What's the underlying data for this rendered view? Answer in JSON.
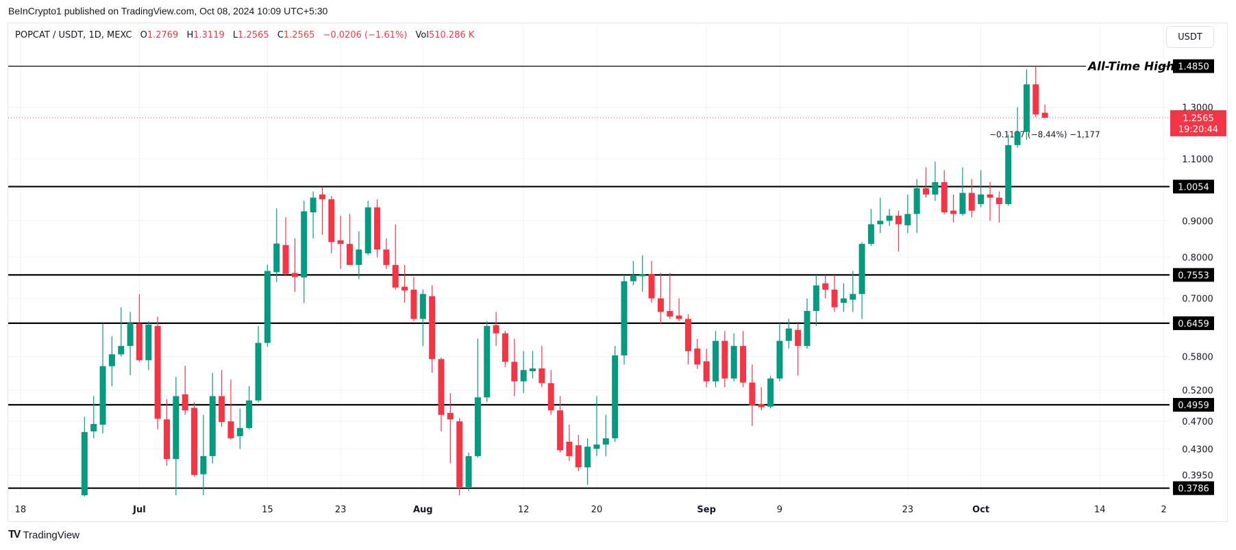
{
  "header": {
    "publisher_text": "BeInCrypto1 published on TradingView.com, Oct 08, 2024 10:09 UTC+5:30"
  },
  "legend": {
    "symbol": "POPCAT / USDT, 1D, MEXC",
    "o_label": "O",
    "o": "1.2769",
    "h_label": "H",
    "h": "1.3119",
    "l_label": "L",
    "l": "1.2565",
    "c_label": "C",
    "c": "1.2565",
    "change": "−0.0206 (−1.61%)",
    "vol_label": "Vol",
    "vol": "510.286 K"
  },
  "currency_button": "USDT",
  "footer": {
    "logo_text": "TradingView"
  },
  "colors": {
    "up": "#089981",
    "down": "#f23645",
    "level_line": "#000000",
    "grid": "#f0f3fa",
    "axis_text": "#131722"
  },
  "chart_data": {
    "type": "candlestick",
    "scale": "log",
    "ylim": [
      0.37,
      1.56
    ],
    "grid": true,
    "y_ticks": [
      "1.3000",
      "1.1000",
      "0.9000",
      "0.8000",
      "0.7000",
      "0.5800",
      "0.5200",
      "0.4700",
      "0.4300",
      "0.3950"
    ],
    "x_ticks": [
      {
        "label": "18",
        "date": "2024-06-18"
      },
      {
        "label": "Jul",
        "date": "2024-07-01",
        "bold": true
      },
      {
        "label": "15",
        "date": "2024-07-15"
      },
      {
        "label": "23",
        "date": "2024-07-23"
      },
      {
        "label": "Aug",
        "date": "2024-08-01",
        "bold": true
      },
      {
        "label": "12",
        "date": "2024-08-12"
      },
      {
        "label": "20",
        "date": "2024-08-20"
      },
      {
        "label": "Sep",
        "date": "2024-09-01",
        "bold": true
      },
      {
        "label": "9",
        "date": "2024-09-09"
      },
      {
        "label": "23",
        "date": "2024-09-23"
      },
      {
        "label": "Oct",
        "date": "2024-10-01",
        "bold": true
      },
      {
        "label": "14",
        "date": "2024-10-14"
      },
      {
        "label": "2",
        "date": "2024-10-21"
      }
    ],
    "levels": [
      {
        "value": 1.485,
        "label": "1.4850",
        "annotation": "All-Time High"
      },
      {
        "value": 1.0054,
        "label": "1.0054"
      },
      {
        "value": 0.7553,
        "label": "0.7553"
      },
      {
        "value": 0.6459,
        "label": "0.6459"
      },
      {
        "value": 0.4959,
        "label": "0.4959"
      },
      {
        "value": 0.3786,
        "label": "0.3786"
      }
    ],
    "current_price": {
      "value": 1.2565,
      "label": "1.2565",
      "countdown": "19:20:44"
    },
    "measure_annotation": {
      "text": "−0.1177 (−8.44%) −1,177",
      "value": 1.2
    },
    "candles": [
      [
        "2024-06-25",
        0.37,
        0.477,
        0.36,
        0.454
      ],
      [
        "2024-06-26",
        0.455,
        0.51,
        0.445,
        0.466
      ],
      [
        "2024-06-27",
        0.465,
        0.645,
        0.452,
        0.562
      ],
      [
        "2024-06-28",
        0.562,
        0.619,
        0.527,
        0.584
      ],
      [
        "2024-06-29",
        0.584,
        0.68,
        0.58,
        0.6
      ],
      [
        "2024-06-30",
        0.6,
        0.67,
        0.546,
        0.646
      ],
      [
        "2024-07-01",
        0.645,
        0.71,
        0.57,
        0.573
      ],
      [
        "2024-07-02",
        0.573,
        0.65,
        0.555,
        0.643
      ],
      [
        "2024-07-03",
        0.64,
        0.66,
        0.458,
        0.474
      ],
      [
        "2024-07-04",
        0.473,
        0.505,
        0.407,
        0.416
      ],
      [
        "2024-07-05",
        0.416,
        0.543,
        0.37,
        0.51
      ],
      [
        "2024-07-06",
        0.513,
        0.563,
        0.48,
        0.487
      ],
      [
        "2024-07-07",
        0.491,
        0.5,
        0.393,
        0.395
      ],
      [
        "2024-07-08",
        0.396,
        0.48,
        0.37,
        0.42
      ],
      [
        "2024-07-09",
        0.42,
        0.55,
        0.41,
        0.51
      ],
      [
        "2024-07-10",
        0.51,
        0.555,
        0.462,
        0.469
      ],
      [
        "2024-07-11",
        0.47,
        0.538,
        0.443,
        0.445
      ],
      [
        "2024-07-12",
        0.448,
        0.49,
        0.43,
        0.46
      ],
      [
        "2024-07-13",
        0.46,
        0.527,
        0.458,
        0.503
      ],
      [
        "2024-07-14",
        0.503,
        0.64,
        0.5,
        0.606
      ],
      [
        "2024-07-15",
        0.606,
        0.78,
        0.598,
        0.765
      ],
      [
        "2024-07-16",
        0.762,
        0.937,
        0.738,
        0.836
      ],
      [
        "2024-07-17",
        0.832,
        0.91,
        0.752,
        0.758
      ],
      [
        "2024-07-18",
        0.76,
        0.85,
        0.715,
        0.75
      ],
      [
        "2024-07-19",
        0.749,
        0.96,
        0.69,
        0.928
      ],
      [
        "2024-07-20",
        0.925,
        0.99,
        0.85,
        0.97
      ],
      [
        "2024-07-21",
        0.98,
        1.005,
        0.86,
        0.965
      ],
      [
        "2024-07-22",
        0.965,
        0.975,
        0.81,
        0.84
      ],
      [
        "2024-07-23",
        0.845,
        0.915,
        0.77,
        0.835
      ],
      [
        "2024-07-24",
        0.835,
        0.92,
        0.78,
        0.78
      ],
      [
        "2024-07-25",
        0.78,
        0.87,
        0.745,
        0.82
      ],
      [
        "2024-07-26",
        0.81,
        0.96,
        0.805,
        0.94
      ],
      [
        "2024-07-27",
        0.94,
        0.965,
        0.8,
        0.82
      ],
      [
        "2024-07-28",
        0.82,
        0.85,
        0.77,
        0.78
      ],
      [
        "2024-07-29",
        0.78,
        0.89,
        0.72,
        0.725
      ],
      [
        "2024-07-30",
        0.727,
        0.78,
        0.69,
        0.718
      ],
      [
        "2024-07-31",
        0.72,
        0.75,
        0.65,
        0.655
      ],
      [
        "2024-08-01",
        0.655,
        0.72,
        0.6,
        0.71
      ],
      [
        "2024-08-02",
        0.705,
        0.73,
        0.55,
        0.575
      ],
      [
        "2024-08-03",
        0.575,
        0.578,
        0.455,
        0.48
      ],
      [
        "2024-08-04",
        0.483,
        0.515,
        0.41,
        0.473
      ],
      [
        "2024-08-05",
        0.47,
        0.475,
        0.37,
        0.38
      ],
      [
        "2024-08-06",
        0.38,
        0.425,
        0.375,
        0.42
      ],
      [
        "2024-08-07",
        0.42,
        0.614,
        0.418,
        0.508
      ],
      [
        "2024-08-08",
        0.508,
        0.65,
        0.5,
        0.64
      ],
      [
        "2024-08-09",
        0.642,
        0.67,
        0.6,
        0.625
      ],
      [
        "2024-08-10",
        0.625,
        0.63,
        0.56,
        0.57
      ],
      [
        "2024-08-11",
        0.57,
        0.614,
        0.51,
        0.535
      ],
      [
        "2024-08-12",
        0.535,
        0.59,
        0.515,
        0.555
      ],
      [
        "2024-08-13",
        0.553,
        0.59,
        0.54,
        0.558
      ],
      [
        "2024-08-14",
        0.558,
        0.6,
        0.525,
        0.532
      ],
      [
        "2024-08-15",
        0.532,
        0.555,
        0.48,
        0.487
      ],
      [
        "2024-08-16",
        0.487,
        0.51,
        0.425,
        0.428
      ],
      [
        "2024-08-17",
        0.44,
        0.465,
        0.413,
        0.42
      ],
      [
        "2024-08-18",
        0.435,
        0.45,
        0.4,
        0.405
      ],
      [
        "2024-08-19",
        0.405,
        0.445,
        0.383,
        0.433
      ],
      [
        "2024-08-20",
        0.43,
        0.51,
        0.42,
        0.436
      ],
      [
        "2024-08-21",
        0.436,
        0.48,
        0.42,
        0.445
      ],
      [
        "2024-08-22",
        0.445,
        0.6,
        0.44,
        0.582
      ],
      [
        "2024-08-23",
        0.582,
        0.755,
        0.565,
        0.74
      ],
      [
        "2024-08-24",
        0.74,
        0.79,
        0.73,
        0.755
      ],
      [
        "2024-08-25",
        0.752,
        0.805,
        0.715,
        0.757
      ],
      [
        "2024-08-26",
        0.757,
        0.79,
        0.69,
        0.7
      ],
      [
        "2024-08-27",
        0.7,
        0.76,
        0.645,
        0.67
      ],
      [
        "2024-08-28",
        0.672,
        0.76,
        0.655,
        0.66
      ],
      [
        "2024-08-29",
        0.662,
        0.7,
        0.65,
        0.655
      ],
      [
        "2024-08-30",
        0.655,
        0.665,
        0.565,
        0.59
      ],
      [
        "2024-08-31",
        0.595,
        0.614,
        0.557,
        0.565
      ],
      [
        "2024-09-01",
        0.571,
        0.595,
        0.525,
        0.535
      ],
      [
        "2024-09-02",
        0.535,
        0.63,
        0.525,
        0.61
      ],
      [
        "2024-09-03",
        0.61,
        0.63,
        0.525,
        0.54
      ],
      [
        "2024-09-04",
        0.54,
        0.625,
        0.535,
        0.6
      ],
      [
        "2024-09-05",
        0.6,
        0.63,
        0.525,
        0.533
      ],
      [
        "2024-09-06",
        0.533,
        0.565,
        0.463,
        0.495
      ],
      [
        "2024-09-07",
        0.497,
        0.525,
        0.487,
        0.492
      ],
      [
        "2024-09-08",
        0.493,
        0.545,
        0.49,
        0.54
      ],
      [
        "2024-09-09",
        0.54,
        0.646,
        0.535,
        0.61
      ],
      [
        "2024-09-10",
        0.61,
        0.655,
        0.595,
        0.635
      ],
      [
        "2024-09-11",
        0.632,
        0.646,
        0.545,
        0.6
      ],
      [
        "2024-09-12",
        0.6,
        0.7,
        0.595,
        0.672
      ],
      [
        "2024-09-13",
        0.672,
        0.755,
        0.64,
        0.73
      ],
      [
        "2024-09-14",
        0.735,
        0.755,
        0.7,
        0.72
      ],
      [
        "2024-09-15",
        0.72,
        0.755,
        0.67,
        0.68
      ],
      [
        "2024-09-16",
        0.69,
        0.735,
        0.67,
        0.7
      ],
      [
        "2024-09-17",
        0.697,
        0.765,
        0.67,
        0.71
      ],
      [
        "2024-09-18",
        0.71,
        0.84,
        0.655,
        0.835
      ],
      [
        "2024-09-19",
        0.835,
        0.935,
        0.83,
        0.89
      ],
      [
        "2024-09-20",
        0.89,
        0.97,
        0.865,
        0.9
      ],
      [
        "2024-09-21",
        0.9,
        0.935,
        0.885,
        0.915
      ],
      [
        "2024-09-22",
        0.915,
        0.93,
        0.815,
        0.89
      ],
      [
        "2024-09-23",
        0.887,
        0.98,
        0.865,
        0.92
      ],
      [
        "2024-09-24",
        0.92,
        1.03,
        0.865,
        1.0
      ],
      [
        "2024-09-25",
        1.0,
        1.07,
        0.97,
        0.98
      ],
      [
        "2024-09-26",
        0.98,
        1.09,
        0.96,
        1.02
      ],
      [
        "2024-09-27",
        1.02,
        1.06,
        0.92,
        0.925
      ],
      [
        "2024-09-28",
        0.93,
        0.98,
        0.895,
        0.92
      ],
      [
        "2024-09-29",
        0.92,
        1.07,
        0.915,
        0.985
      ],
      [
        "2024-09-30",
        0.985,
        1.03,
        0.91,
        0.93
      ],
      [
        "2024-10-01",
        0.95,
        1.06,
        0.94,
        0.98
      ],
      [
        "2024-10-02",
        0.98,
        1.02,
        0.9,
        0.97
      ],
      [
        "2024-10-03",
        0.97,
        0.99,
        0.895,
        0.95
      ],
      [
        "2024-10-04",
        0.95,
        1.19,
        0.945,
        1.15
      ],
      [
        "2024-10-05",
        1.15,
        1.3,
        1.14,
        1.2
      ],
      [
        "2024-10-06",
        1.2,
        1.47,
        1.17,
        1.4
      ],
      [
        "2024-10-07",
        1.4,
        1.485,
        1.26,
        1.27
      ],
      [
        "2024-10-08",
        1.2769,
        1.3119,
        1.2565,
        1.2565
      ]
    ]
  }
}
